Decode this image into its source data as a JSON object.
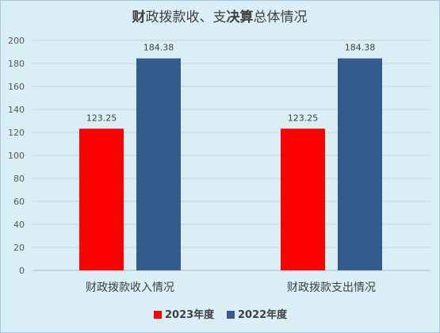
{
  "chart_data": {
    "type": "bar",
    "title": "财政拨款收、支决算总体情况",
    "title_parts": [
      {
        "text": "财",
        "bold": true
      },
      {
        "text": "政拨款收、支",
        "bold": false
      },
      {
        "text": "决算",
        "bold": true
      },
      {
        "text": "总体情况",
        "bold": false
      }
    ],
    "categories": [
      "财政拨款收入情况",
      "财政拨款支出情况"
    ],
    "series": [
      {
        "name": "2023年度",
        "color": "#ff0000",
        "values": [
          123.25,
          123.25
        ]
      },
      {
        "name": "2022年度",
        "color": "#335b8e",
        "values": [
          184.38,
          184.38
        ]
      }
    ],
    "value_labels": [
      [
        "123.25",
        "123.25"
      ],
      [
        "184.38",
        "184.38"
      ]
    ],
    "ylim": [
      0,
      200
    ],
    "yticks": [
      "0",
      "20",
      "40",
      "60",
      "80",
      "100",
      "120",
      "140",
      "160",
      "180",
      "200"
    ],
    "xlabel": "",
    "ylabel": "",
    "grid": true,
    "legend_position": "bottom"
  }
}
